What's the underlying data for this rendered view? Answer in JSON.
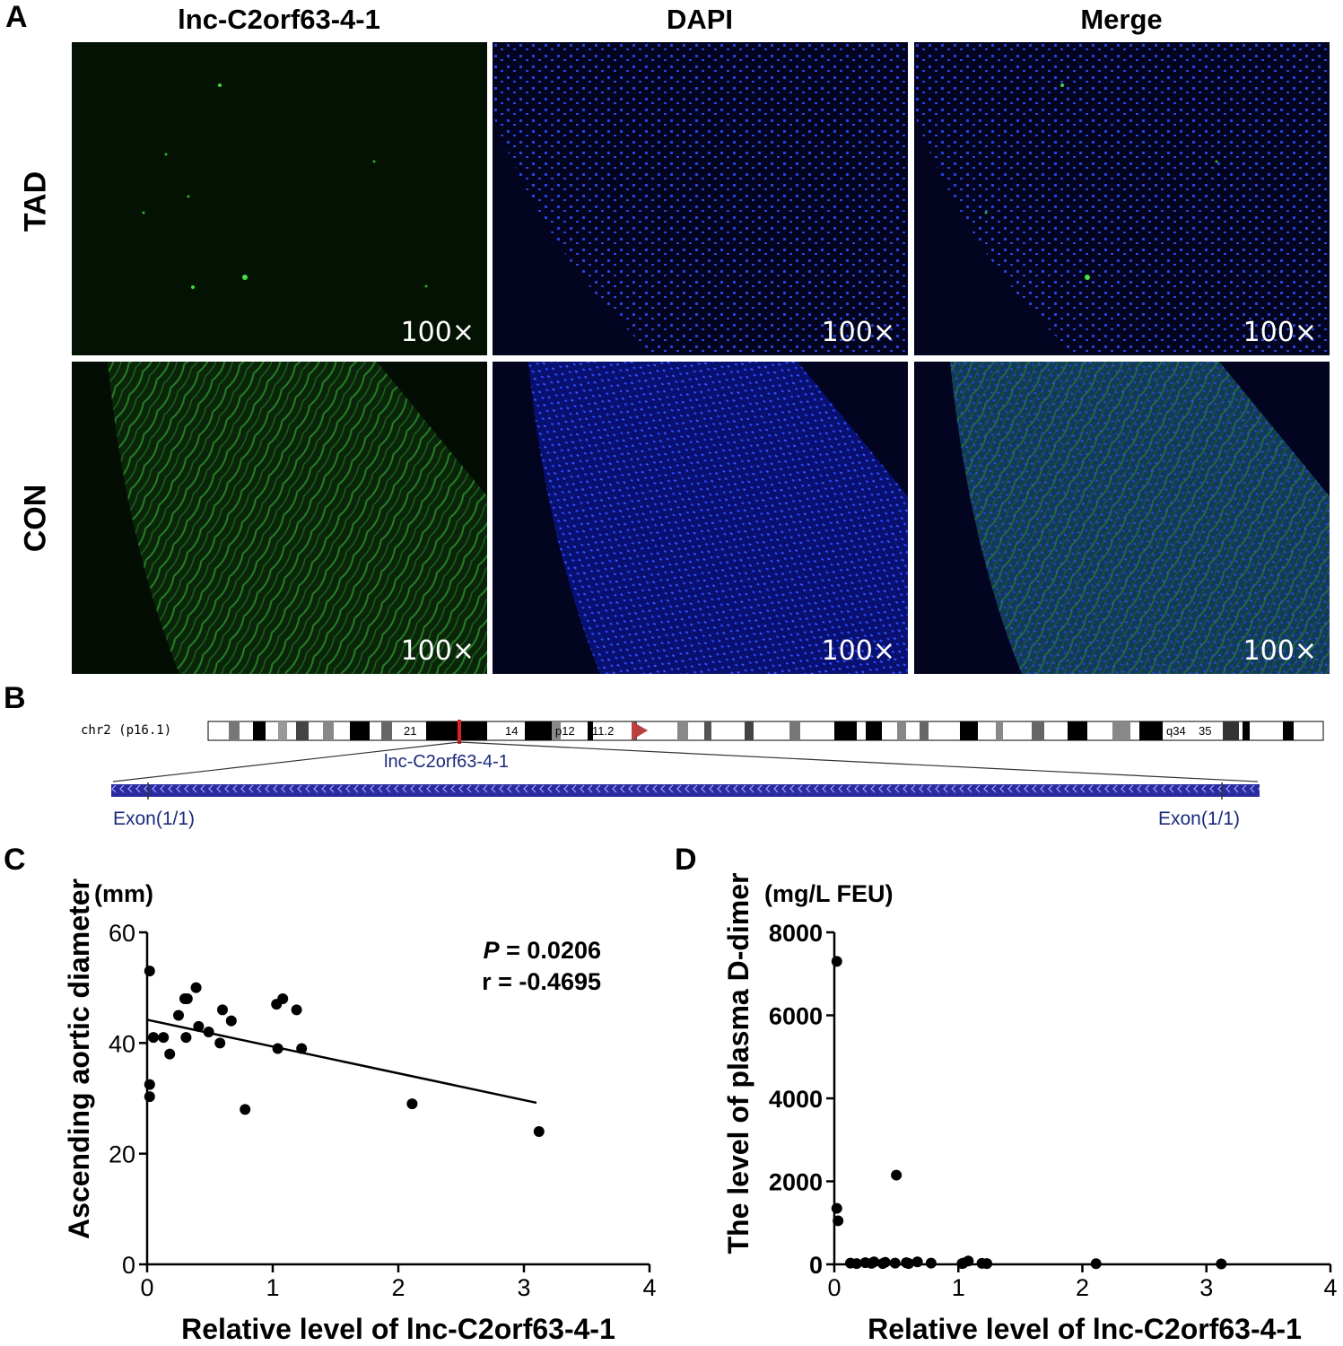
{
  "panel_a": {
    "letter": "A",
    "columns": [
      "lnc-C2orf63-4-1",
      "DAPI",
      "Merge"
    ],
    "rows": [
      "TAD",
      "CON"
    ],
    "magnification": "100×"
  },
  "panel_b": {
    "letter": "B",
    "chromosome_label": "chr2 (p16.1)",
    "band_labels": [
      "21",
      "14",
      "p12",
      "11.2",
      "q34",
      "35"
    ],
    "gene_label": "lnc-C2orf63-4-1",
    "exon_left": "Exon(1/1)",
    "exon_right": "Exon(1/1)"
  },
  "panel_c": {
    "letter": "C"
  },
  "panel_d": {
    "letter": "D"
  },
  "chart_data": [
    {
      "type": "scatter",
      "unit": "(mm)",
      "xlabel": "Relative level of lnc-C2orf63-4-1",
      "ylabel": "Ascending aortic diameter",
      "xlim": [
        0,
        4
      ],
      "ylim": [
        0,
        60
      ],
      "xticks": [
        0,
        1,
        2,
        3,
        4
      ],
      "yticks": [
        0,
        20,
        40,
        60
      ],
      "annotation_p_label": "P",
      "annotation_p_value": " = 0.0206",
      "annotation_r": "r = -0.4695",
      "regression": {
        "x": [
          0,
          3.1
        ],
        "y": [
          44.2,
          29.2
        ]
      },
      "points": [
        {
          "x": 0.02,
          "y": 53
        },
        {
          "x": 0.02,
          "y": 32.5
        },
        {
          "x": 0.02,
          "y": 30.3
        },
        {
          "x": 0.05,
          "y": 41
        },
        {
          "x": 0.13,
          "y": 41
        },
        {
          "x": 0.18,
          "y": 38
        },
        {
          "x": 0.25,
          "y": 45
        },
        {
          "x": 0.3,
          "y": 48
        },
        {
          "x": 0.32,
          "y": 48
        },
        {
          "x": 0.31,
          "y": 41
        },
        {
          "x": 0.39,
          "y": 50
        },
        {
          "x": 0.41,
          "y": 43
        },
        {
          "x": 0.49,
          "y": 42
        },
        {
          "x": 0.58,
          "y": 40
        },
        {
          "x": 0.6,
          "y": 46
        },
        {
          "x": 0.67,
          "y": 44
        },
        {
          "x": 0.78,
          "y": 28
        },
        {
          "x": 1.03,
          "y": 47
        },
        {
          "x": 1.08,
          "y": 48
        },
        {
          "x": 1.04,
          "y": 39
        },
        {
          "x": 1.19,
          "y": 46
        },
        {
          "x": 1.23,
          "y": 39
        },
        {
          "x": 2.11,
          "y": 29
        },
        {
          "x": 3.12,
          "y": 24
        }
      ]
    },
    {
      "type": "scatter",
      "unit": "(mg/L FEU)",
      "xlabel": "Relative level of lnc-C2orf63-4-1",
      "ylabel": "The level of plasma D-dimer",
      "xlim": [
        0,
        4
      ],
      "ylim": [
        0,
        8000
      ],
      "xticks": [
        0,
        1,
        2,
        3,
        4
      ],
      "yticks": [
        0,
        2000,
        4000,
        6000,
        8000
      ],
      "points": [
        {
          "x": 0.02,
          "y": 7300
        },
        {
          "x": 0.02,
          "y": 1350
        },
        {
          "x": 0.03,
          "y": 1050
        },
        {
          "x": 0.5,
          "y": 2150
        },
        {
          "x": 0.13,
          "y": 30
        },
        {
          "x": 0.18,
          "y": 20
        },
        {
          "x": 0.25,
          "y": 40
        },
        {
          "x": 0.3,
          "y": 25
        },
        {
          "x": 0.32,
          "y": 60
        },
        {
          "x": 0.39,
          "y": 20
        },
        {
          "x": 0.41,
          "y": 50
        },
        {
          "x": 0.49,
          "y": 30
        },
        {
          "x": 0.58,
          "y": 40
        },
        {
          "x": 0.6,
          "y": 20
        },
        {
          "x": 0.67,
          "y": 60
        },
        {
          "x": 0.78,
          "y": 30
        },
        {
          "x": 1.03,
          "y": 20
        },
        {
          "x": 1.08,
          "y": 80
        },
        {
          "x": 1.04,
          "y": 30
        },
        {
          "x": 1.19,
          "y": 25
        },
        {
          "x": 1.23,
          "y": 20
        },
        {
          "x": 2.11,
          "y": 15
        },
        {
          "x": 3.12,
          "y": 10
        }
      ]
    }
  ],
  "colors": {
    "green_bg": "#041004",
    "green_fiber": "#1f6f1f",
    "blue_bg": "#020424",
    "blue_nuclei": "#2a46ff",
    "merge_tint": "#3a8a9a",
    "ideogram_red": "#e02020",
    "transcript_blue": "#2b2ba0",
    "label_blue": "#1a2a7a"
  }
}
